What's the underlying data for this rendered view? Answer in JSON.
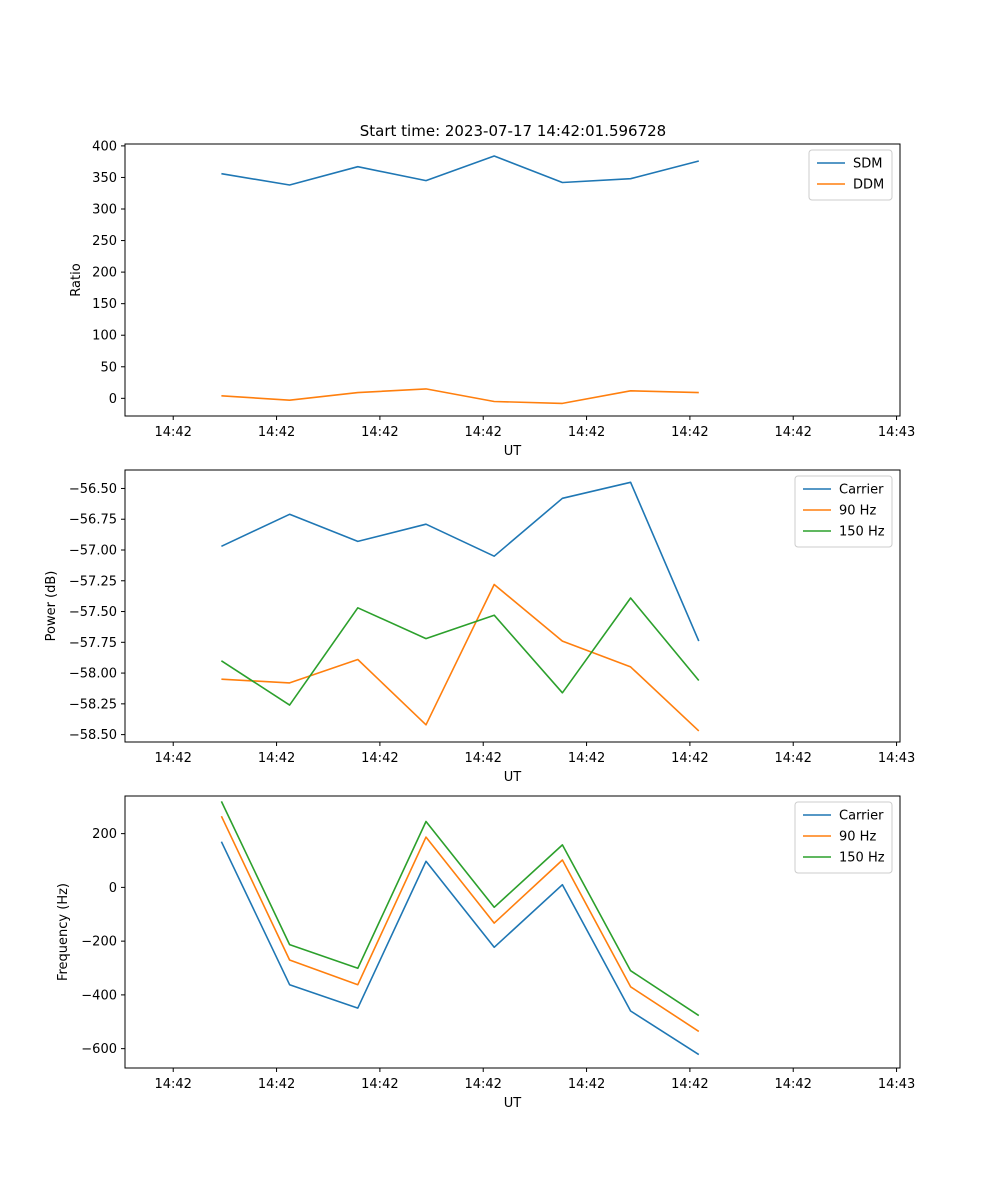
{
  "figure_title": "Start time: 2023-07-17 14:42:01.596728",
  "chart_data": [
    {
      "type": "line",
      "title": "Start time: 2023-07-17 14:42:01.596728",
      "xlabel": "UT",
      "ylabel": "Ratio",
      "x_tick_labels": [
        "14:42",
        "14:42",
        "14:42",
        "14:42",
        "14:42",
        "14:42",
        "14:42",
        "14:43"
      ],
      "x_ticks": [
        0,
        1.5,
        3,
        4.5,
        6,
        7.5,
        9,
        10.5
      ],
      "xlim": [
        -0.7,
        10.55
      ],
      "ylim": [
        -28,
        403
      ],
      "y_ticks": [
        0,
        50,
        100,
        150,
        200,
        250,
        300,
        350,
        400
      ],
      "y_tick_labels": [
        "0",
        "50",
        "100",
        "150",
        "200",
        "250",
        "300",
        "350",
        "400"
      ],
      "legend_position": "top-right",
      "x": [
        0.7,
        1.69,
        2.68,
        3.67,
        4.66,
        5.65,
        6.64,
        7.63
      ],
      "series": [
        {
          "name": "SDM",
          "color": "#1f77b4",
          "values": [
            356,
            338,
            367,
            345,
            384,
            342,
            348,
            376
          ]
        },
        {
          "name": "DDM",
          "color": "#ff7f0e",
          "values": [
            4,
            -3,
            9,
            15,
            -5,
            -8,
            12,
            9
          ]
        }
      ]
    },
    {
      "type": "line",
      "title": "",
      "xlabel": "UT",
      "ylabel": "Power (dB)",
      "x_tick_labels": [
        "14:42",
        "14:42",
        "14:42",
        "14:42",
        "14:42",
        "14:42",
        "14:42",
        "14:43"
      ],
      "x_ticks": [
        0,
        1.5,
        3,
        4.5,
        6,
        7.5,
        9,
        10.5
      ],
      "xlim": [
        -0.7,
        10.55
      ],
      "ylim": [
        -58.56,
        -56.35
      ],
      "y_ticks": [
        -56.5,
        -56.75,
        -57.0,
        -57.25,
        -57.5,
        -57.75,
        -58.0,
        -58.25,
        -58.5
      ],
      "y_tick_labels": [
        "−56.50",
        "−56.75",
        "−57.00",
        "−57.25",
        "−57.50",
        "−57.75",
        "−58.00",
        "−58.25",
        "−58.50"
      ],
      "legend_position": "top-right",
      "x": [
        0.7,
        1.69,
        2.68,
        3.67,
        4.66,
        5.65,
        6.64,
        7.63
      ],
      "series": [
        {
          "name": "Carrier",
          "color": "#1f77b4",
          "values": [
            -56.97,
            -56.71,
            -56.93,
            -56.79,
            -57.05,
            -56.58,
            -56.45,
            -57.74
          ]
        },
        {
          "name": "90 Hz",
          "color": "#ff7f0e",
          "values": [
            -58.05,
            -58.08,
            -57.89,
            -58.42,
            -57.28,
            -57.74,
            -57.95,
            -58.47
          ]
        },
        {
          "name": "150 Hz",
          "color": "#2ca02c",
          "values": [
            -57.9,
            -58.26,
            -57.47,
            -57.72,
            -57.53,
            -58.16,
            -57.39,
            -58.06
          ]
        }
      ]
    },
    {
      "type": "line",
      "title": "",
      "xlabel": "UT",
      "ylabel": "Frequency (Hz)",
      "x_tick_labels": [
        "14:42",
        "14:42",
        "14:42",
        "14:42",
        "14:42",
        "14:42",
        "14:42",
        "14:43"
      ],
      "x_ticks": [
        0,
        1.5,
        3,
        4.5,
        6,
        7.5,
        9,
        10.5
      ],
      "xlim": [
        -0.7,
        10.55
      ],
      "ylim": [
        -672,
        340
      ],
      "y_ticks": [
        200,
        0,
        -200,
        -400,
        -600
      ],
      "y_tick_labels": [
        "200",
        "0",
        "−200",
        "−400",
        "−600"
      ],
      "legend_position": "top-right",
      "x": [
        0.7,
        1.69,
        2.68,
        3.67,
        4.66,
        5.65,
        6.64,
        7.63
      ],
      "series": [
        {
          "name": "Carrier",
          "color": "#1f77b4",
          "values": [
            170,
            -362,
            -449,
            97,
            -223,
            10,
            -460,
            -622
          ]
        },
        {
          "name": "90 Hz",
          "color": "#ff7f0e",
          "values": [
            265,
            -270,
            -362,
            187,
            -133,
            102,
            -370,
            -536
          ]
        },
        {
          "name": "150 Hz",
          "color": "#2ca02c",
          "values": [
            320,
            -213,
            -301,
            245,
            -74,
            158,
            -310,
            -477
          ]
        }
      ]
    }
  ]
}
